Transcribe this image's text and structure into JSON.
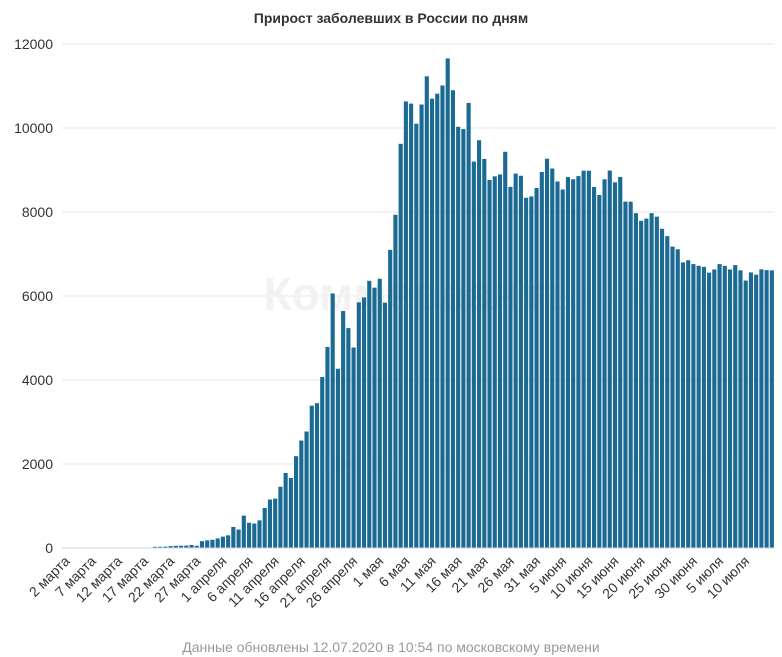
{
  "chart_data": {
    "type": "bar",
    "title": "Прирост заболевших в России по дням",
    "xlabel": "",
    "ylabel": "",
    "ylim": [
      0,
      12000
    ],
    "y_ticks": [
      0,
      2000,
      4000,
      6000,
      8000,
      10000,
      12000
    ],
    "grid": true,
    "bar_color": "#1a6a93",
    "x_tick_labels": [
      "2 марта",
      "7 марта",
      "12 марта",
      "17 марта",
      "22 марта",
      "27 марта",
      "1 апреля",
      "6 апреля",
      "11 апреля",
      "16 апреля",
      "21 апреля",
      "26 апреля",
      "1 мая",
      "6 мая",
      "11 мая",
      "16 мая",
      "21 мая",
      "26 мая",
      "31 мая",
      "5 июня",
      "10 июня",
      "15 июня",
      "20 июня",
      "25 июня",
      "30 июня",
      "5 июля",
      "10 июля"
    ],
    "start_day_label": "2 марта",
    "values": [
      0,
      0,
      0,
      0,
      0,
      1,
      0,
      0,
      0,
      0,
      3,
      0,
      7,
      0,
      10,
      0,
      8,
      28,
      30,
      33,
      45,
      52,
      54,
      57,
      71,
      53,
      163,
      182,
      196,
      228,
      270,
      302,
      501,
      440,
      771,
      601,
      582,
      658,
      954,
      1154,
      1175,
      1459,
      1786,
      1667,
      2186,
      2558,
      2774,
      3388,
      3448,
      4070,
      4785,
      6060,
      4268,
      5642,
      5236,
      4774,
      5849,
      5966,
      6361,
      6198,
      6411,
      5841,
      7099,
      7933,
      9623,
      10633,
      10581,
      10102,
      10559,
      11231,
      10699,
      10817,
      11012,
      11656,
      10899,
      10028,
      9974,
      10598,
      9200,
      9709,
      9263,
      8764,
      8849,
      8894,
      9434,
      8599,
      8915,
      8863,
      8338,
      8371,
      8572,
      8952,
      9268,
      9035,
      8726,
      8536,
      8831,
      8779,
      8855,
      8985,
      8984,
      8595,
      8404,
      8779,
      8987,
      8706,
      8835,
      8248,
      8246,
      7972,
      7790,
      7843,
      7972,
      7889,
      7600,
      7425,
      7176,
      7113,
      6800,
      6852,
      6760,
      6719,
      6693,
      6556,
      6632,
      6760,
      6718,
      6632,
      6736,
      6611,
      6368,
      6562,
      6509,
      6635,
      6615,
      6611
    ]
  },
  "watermark": "Коммерсантъ",
  "footnote": "Данные обновлены 12.07.2020 в 10:54 по московскому времени"
}
